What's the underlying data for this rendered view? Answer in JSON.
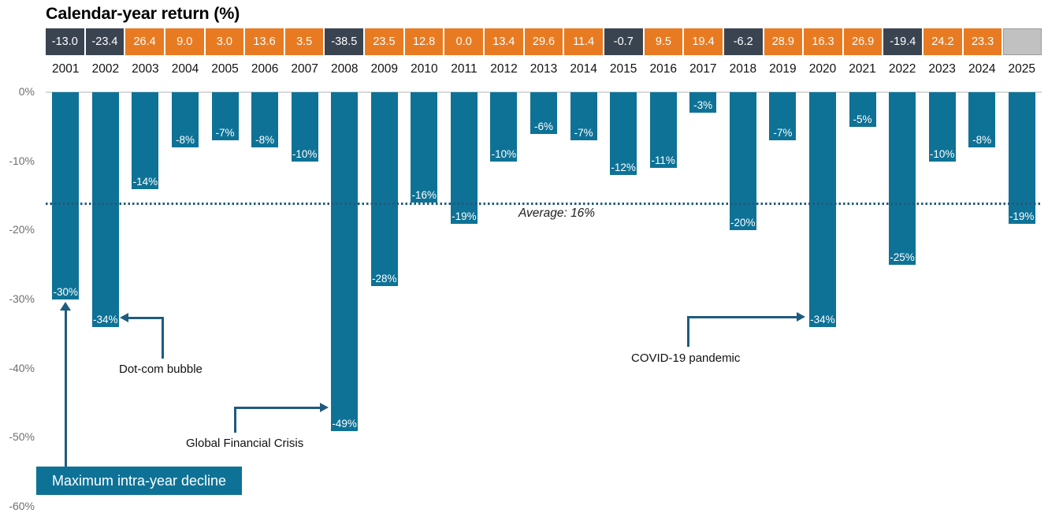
{
  "title": "Calendar-year return (%)",
  "y_axis": {
    "ticks": [
      "0%",
      "-10%",
      "-20%",
      "-30%",
      "-40%",
      "-50%",
      "-60%"
    ]
  },
  "annotations": {
    "average": "Average: 16%",
    "dotcom": "Dot-com bubble",
    "gfc": "Global Financial Crisis",
    "covid": "COVID-19 pandemic",
    "max_decline": "Maximum intra-year decline"
  },
  "colors": {
    "bar_teal": "#0e7296",
    "arrow_navy": "#1f5b7e",
    "header_negative": "#3a4451",
    "header_positive": "#e87b22",
    "header_empty": "#c1c1c1",
    "axis_text_gray": "#6f6f6f",
    "gridline_gray": "#d9d9d9",
    "label_white": "#ffffff"
  },
  "chart_data": {
    "type": "bar",
    "title": "Calendar-year return (%)",
    "categories": [
      "2001",
      "2002",
      "2003",
      "2004",
      "2005",
      "2006",
      "2007",
      "2008",
      "2009",
      "2010",
      "2011",
      "2012",
      "2013",
      "2014",
      "2015",
      "2016",
      "2017",
      "2018",
      "2019",
      "2020",
      "2021",
      "2022",
      "2023",
      "2024",
      "2025"
    ],
    "series": [
      {
        "name": "Calendar-year return (%)",
        "values": [
          -13.0,
          -23.4,
          26.4,
          9.0,
          3.0,
          13.6,
          3.5,
          -38.5,
          23.5,
          12.8,
          0.0,
          13.4,
          29.6,
          11.4,
          -0.7,
          9.5,
          19.4,
          -6.2,
          28.9,
          16.3,
          26.9,
          -19.4,
          24.2,
          23.3,
          null
        ]
      },
      {
        "name": "Maximum intra-year decline",
        "values": [
          -30,
          -34,
          -14,
          -8,
          -7,
          -8,
          -10,
          -49,
          -28,
          -16,
          -19,
          -10,
          -6,
          -7,
          -12,
          -11,
          -3,
          -20,
          -7,
          -34,
          -5,
          -25,
          -10,
          -8,
          -19
        ]
      }
    ],
    "ylabel": "",
    "ylim": [
      -60,
      0
    ],
    "yticks": [
      0,
      -10,
      -20,
      -30,
      -40,
      -50,
      -60
    ],
    "grid": "zero-baseline only",
    "average_line": {
      "value": -16,
      "label": "Average: 16%"
    },
    "annotation_targets": {
      "Dot-com bubble": "2002",
      "Global Financial Crisis": "2008",
      "COVID-19 pandemic": "2020",
      "Maximum intra-year decline": "2001"
    },
    "legend_position": "callout box bottom-left"
  }
}
